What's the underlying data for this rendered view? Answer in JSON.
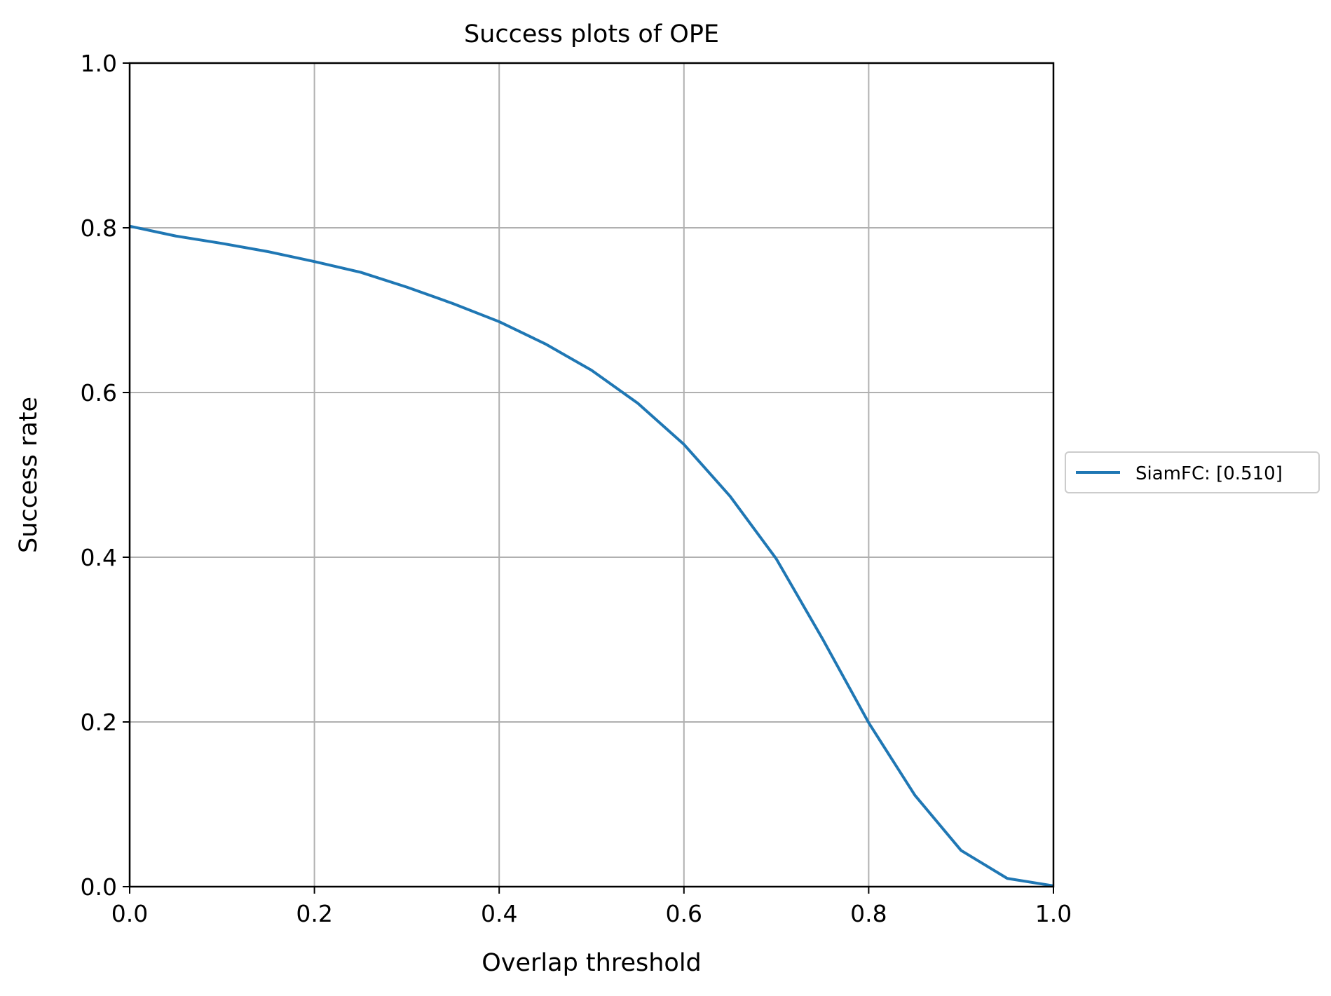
{
  "chart_data": {
    "type": "line",
    "title": "Success plots of OPE",
    "xlabel": "Overlap threshold",
    "ylabel": "Success rate",
    "xlim": [
      0.0,
      1.0
    ],
    "ylim": [
      0.0,
      1.0
    ],
    "grid": true,
    "legend_position": "right",
    "x_ticks": [
      "0.0",
      "0.2",
      "0.4",
      "0.6",
      "0.8",
      "1.0"
    ],
    "y_ticks": [
      "0.0",
      "0.2",
      "0.4",
      "0.6",
      "0.8",
      "1.0"
    ],
    "x": [
      0.0,
      0.05,
      0.1,
      0.15,
      0.2,
      0.25,
      0.3,
      0.35,
      0.4,
      0.45,
      0.5,
      0.55,
      0.6,
      0.65,
      0.7,
      0.75,
      0.8,
      0.85,
      0.9,
      0.95,
      1.0
    ],
    "series": [
      {
        "name": "SiamFC: [0.510]",
        "color": "#1f77b4",
        "values": [
          0.802,
          0.79,
          0.781,
          0.771,
          0.759,
          0.746,
          0.728,
          0.708,
          0.686,
          0.659,
          0.627,
          0.587,
          0.537,
          0.474,
          0.398,
          0.301,
          0.199,
          0.111,
          0.044,
          0.01,
          0.001
        ]
      }
    ]
  }
}
